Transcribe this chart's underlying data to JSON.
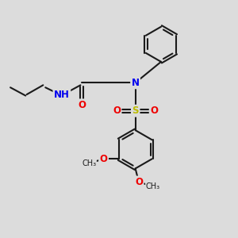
{
  "bg_color": "#dcdcdc",
  "bond_color": "#1a1a1a",
  "bond_lw": 1.5,
  "N_color": "#0000ee",
  "O_color": "#ee0000",
  "S_color": "#bbbb00",
  "font_size": 8.5,
  "fig_size": [
    3.0,
    3.0
  ],
  "dpi": 100,
  "xlim": [
    0,
    10
  ],
  "ylim": [
    0,
    10
  ]
}
